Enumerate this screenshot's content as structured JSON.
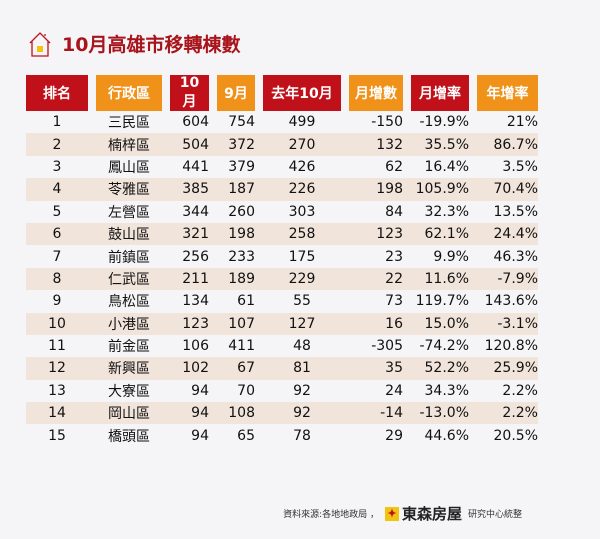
{
  "title": "10月高雄市移轉棟數",
  "headers": [
    "排名",
    "行政區",
    "10月",
    "9月",
    "去年10月",
    "月增數",
    "月增率",
    "年增率"
  ],
  "rows": [
    [
      "1",
      "三民區",
      "604",
      "754",
      "499",
      "-150",
      "-19.9%",
      "21%"
    ],
    [
      "2",
      "楠梓區",
      "504",
      "372",
      "270",
      "132",
      "35.5%",
      "86.7%"
    ],
    [
      "3",
      "鳳山區",
      "441",
      "379",
      "426",
      "62",
      "16.4%",
      "3.5%"
    ],
    [
      "4",
      "苓雅區",
      "385",
      "187",
      "226",
      "198",
      "105.9%",
      "70.4%"
    ],
    [
      "5",
      "左營區",
      "344",
      "260",
      "303",
      "84",
      "32.3%",
      "13.5%"
    ],
    [
      "6",
      "鼓山區",
      "321",
      "198",
      "258",
      "123",
      "62.1%",
      "24.4%"
    ],
    [
      "7",
      "前鎮區",
      "256",
      "233",
      "175",
      "23",
      "9.9%",
      "46.3%"
    ],
    [
      "8",
      "仁武區",
      "211",
      "189",
      "229",
      "22",
      "11.6%",
      "-7.9%"
    ],
    [
      "9",
      "鳥松區",
      "134",
      "61",
      "55",
      "73",
      "119.7%",
      "143.6%"
    ],
    [
      "10",
      "小港區",
      "123",
      "107",
      "127",
      "16",
      "15.0%",
      "-3.1%"
    ],
    [
      "11",
      "前金區",
      "106",
      "411",
      "48",
      "-305",
      "-74.2%",
      "120.8%"
    ],
    [
      "12",
      "新興區",
      "102",
      "67",
      "81",
      "35",
      "52.2%",
      "25.9%"
    ],
    [
      "13",
      "大寮區",
      "94",
      "70",
      "92",
      "24",
      "34.3%",
      "2.2%"
    ],
    [
      "14",
      "岡山區",
      "94",
      "108",
      "92",
      "-14",
      "-13.0%",
      "2.2%"
    ],
    [
      "15",
      "橋頭區",
      "94",
      "65",
      "78",
      "29",
      "44.6%",
      "20.5%"
    ]
  ],
  "footer": {
    "source": "資料來源:各地地政局 ，",
    "brand": "東森房屋",
    "suffix": "研究中心統整"
  },
  "colors": {
    "red": "#c0101a",
    "orange": "#f0921a",
    "alt_row": "#f1e4db"
  }
}
